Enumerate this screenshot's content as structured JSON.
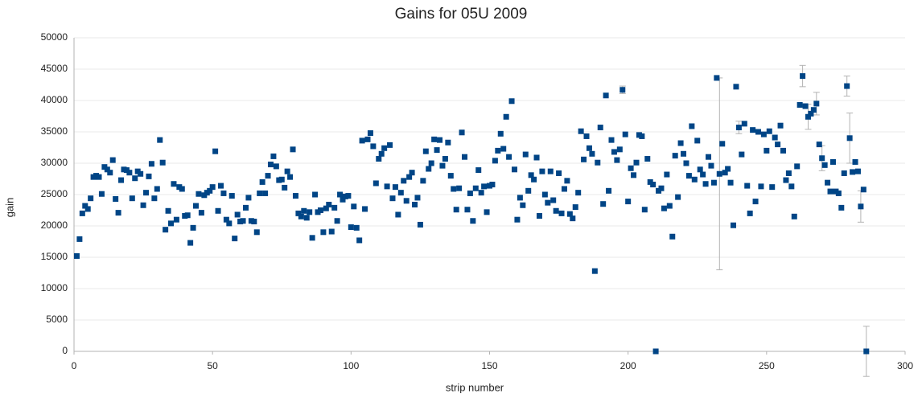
{
  "chart_data": {
    "type": "scatter",
    "title": "Gains for 05U 2009",
    "x_label": "strip number",
    "y_label": "gain",
    "color": "#004586",
    "error_color": "#b3b3b3",
    "grid": true,
    "xlim": [
      0,
      300
    ],
    "xticks": [
      0,
      50,
      100,
      150,
      200,
      250,
      300
    ],
    "ylim": [
      0,
      50000
    ],
    "yticks": [
      0,
      5000,
      10000,
      15000,
      20000,
      25000,
      30000,
      35000,
      40000,
      45000,
      50000
    ],
    "x": [
      1,
      2,
      3,
      4,
      5,
      6,
      7,
      8,
      9,
      10,
      11,
      12,
      13,
      14,
      15,
      16,
      17,
      18,
      19,
      20,
      21,
      22,
      23,
      24,
      25,
      26,
      27,
      28,
      29,
      30,
      31,
      32,
      33,
      34,
      35,
      36,
      37,
      38,
      39,
      40,
      41,
      42,
      43,
      44,
      45,
      46,
      47,
      48,
      49,
      50,
      51,
      52,
      53,
      54,
      55,
      56,
      57,
      58,
      59,
      60,
      61,
      62,
      63,
      64,
      65,
      66,
      67,
      68,
      69,
      70,
      71,
      72,
      73,
      74,
      75,
      76,
      77,
      78,
      79,
      80,
      81,
      82,
      83,
      84,
      85,
      86,
      87,
      88,
      89,
      90,
      91,
      92,
      93,
      94,
      95,
      96,
      97,
      98,
      99,
      100,
      101,
      102,
      103,
      104,
      105,
      106,
      107,
      108,
      109,
      110,
      111,
      112,
      113,
      114,
      115,
      116,
      117,
      118,
      119,
      120,
      121,
      122,
      123,
      124,
      125,
      126,
      127,
      128,
      129,
      130,
      131,
      132,
      133,
      134,
      135,
      136,
      137,
      138,
      139,
      140,
      141,
      142,
      143,
      144,
      145,
      146,
      147,
      148,
      149,
      150,
      151,
      152,
      153,
      154,
      155,
      156,
      157,
      158,
      159,
      160,
      161,
      162,
      163,
      164,
      165,
      166,
      167,
      168,
      169,
      170,
      171,
      172,
      173,
      174,
      175,
      176,
      177,
      178,
      179,
      180,
      181,
      182,
      183,
      184,
      185,
      186,
      187,
      188,
      189,
      190,
      191,
      192,
      193,
      194,
      195,
      196,
      197,
      198,
      199,
      200,
      201,
      202,
      203,
      204,
      205,
      206,
      207,
      208,
      209,
      210,
      211,
      212,
      213,
      214,
      215,
      216,
      217,
      218,
      219,
      220,
      221,
      222,
      223,
      224,
      225,
      226,
      227,
      228,
      229,
      230,
      231,
      232,
      233,
      234,
      235,
      236,
      237,
      238,
      239,
      240,
      241,
      242,
      243,
      244,
      245,
      246,
      247,
      248,
      249,
      250,
      251,
      252,
      253,
      254,
      255,
      256,
      257,
      258,
      259,
      260,
      261,
      262,
      263,
      264,
      265,
      266,
      267,
      268,
      269,
      270,
      271,
      272,
      273,
      274,
      275,
      276,
      277,
      278,
      279,
      280,
      281,
      282,
      283,
      284,
      285,
      286
    ],
    "values": [
      15200,
      17900,
      22000,
      23200,
      22700,
      24400,
      27800,
      28000,
      27800,
      25100,
      29400,
      29000,
      28500,
      30500,
      24300,
      22100,
      27300,
      29000,
      28900,
      28500,
      24400,
      27600,
      28700,
      28300,
      23300,
      25300,
      27900,
      29900,
      24400,
      25900,
      33700,
      30100,
      19400,
      22400,
      20400,
      26700,
      21000,
      26200,
      25900,
      21600,
      21700,
      17300,
      19700,
      23200,
      25100,
      22100,
      24900,
      25300,
      25600,
      26200,
      31900,
      22400,
      26400,
      25200,
      21000,
      20400,
      24800,
      18000,
      21800,
      20700,
      20800,
      22900,
      24500,
      20800,
      20700,
      19000,
      25200,
      27000,
      25200,
      28000,
      29800,
      31100,
      29500,
      27300,
      27400,
      26100,
      28700,
      27800,
      32200,
      24800,
      22000,
      21500,
      22400,
      21300,
      22200,
      18100,
      25000,
      22200,
      22500,
      19000,
      22800,
      23400,
      19100,
      22900,
      20800,
      25000,
      24200,
      24700,
      24800,
      19800,
      23100,
      19700,
      17700,
      33600,
      22700,
      33800,
      34800,
      32700,
      26800,
      30700,
      31500,
      32400,
      26300,
      32900,
      24400,
      26200,
      21800,
      25300,
      27200,
      24000,
      27800,
      28500,
      23400,
      24500,
      20200,
      27200,
      31900,
      29100,
      30000,
      33800,
      32100,
      33700,
      29600,
      30700,
      33300,
      28000,
      25900,
      22600,
      26000,
      34900,
      31000,
      22600,
      25200,
      20800,
      26000,
      28900,
      25300,
      26300,
      22200,
      26400,
      26600,
      30400,
      32000,
      34700,
      32300,
      37400,
      31000,
      39900,
      29000,
      21000,
      24500,
      23300,
      31400,
      25600,
      28100,
      27400,
      30900,
      21600,
      28700,
      25000,
      23700,
      28700,
      24100,
      22400,
      28400,
      22000,
      25900,
      27200,
      21900,
      21200,
      23000,
      25300,
      35100,
      30600,
      34300,
      32400,
      31500,
      12800,
      30100,
      35700,
      23500,
      40800,
      25600,
      33700,
      31800,
      30500,
      32200,
      41700,
      34600,
      23900,
      29200,
      28100,
      30100,
      34500,
      34300,
      22600,
      30700,
      27000,
      26600,
      0,
      25600,
      26000,
      22800,
      28200,
      23200,
      18300,
      31200,
      24600,
      33200,
      31500,
      30000,
      28000,
      35900,
      27400,
      33600,
      29000,
      28200,
      26700,
      31000,
      29600,
      26900,
      43600,
      28300,
      33100,
      28500,
      29100,
      26900,
      20100,
      42200,
      35700,
      31400,
      36300,
      26400,
      22000,
      35300,
      23900,
      35000,
      26300,
      34600,
      32000,
      35100,
      26200,
      34100,
      33000,
      36000,
      32000,
      27300,
      28400,
      26300,
      21500,
      29500,
      39300,
      43900,
      39100,
      37400,
      37900,
      38500,
      39500,
      33000,
      30800,
      29700,
      26900,
      25500,
      30200,
      25500,
      25200,
      22900,
      28400,
      42300,
      34000,
      28600,
      30200,
      28700,
      23100,
      25800,
      0
    ],
    "error_bars": [
      {
        "x": 198,
        "error": 600
      },
      {
        "x": 233,
        "error": 15300
      },
      {
        "x": 240,
        "error": 1000
      },
      {
        "x": 263,
        "error": 1700
      },
      {
        "x": 265,
        "error": 2000
      },
      {
        "x": 268,
        "error": 1800
      },
      {
        "x": 270,
        "error": 2000
      },
      {
        "x": 279,
        "error": 1600
      },
      {
        "x": 280,
        "error": 4000
      },
      {
        "x": 284,
        "error": 2500
      },
      {
        "x": 286,
        "error": 4000
      }
    ]
  }
}
